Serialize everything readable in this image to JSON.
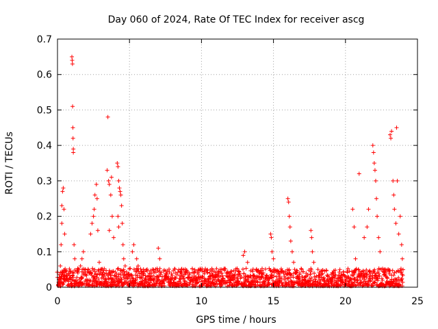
{
  "chart_data": {
    "type": "scatter",
    "title": "Day 060 of 2024, Rate Of TEC Index for receiver ascg",
    "xlabel": "GPS time / hours",
    "ylabel": "ROTI / TECUs",
    "xlim": [
      0,
      25
    ],
    "ylim": [
      0,
      0.7
    ],
    "x_ticks": [
      "0",
      "5",
      "10",
      "15",
      "20",
      "25"
    ],
    "y_ticks": [
      "0",
      "0.1",
      "0.2",
      "0.3",
      "0.4",
      "0.5",
      "0.6",
      "0.7"
    ],
    "grid": true,
    "marker": "+",
    "color": "#ff0000",
    "series": [
      {
        "name": "ROTI",
        "points": [
          [
            0.15,
            0.02
          ],
          [
            0.2,
            0.06
          ],
          [
            0.25,
            0.12
          ],
          [
            0.3,
            0.18
          ],
          [
            0.3,
            0.23
          ],
          [
            0.35,
            0.27
          ],
          [
            0.4,
            0.28
          ],
          [
            0.45,
            0.22
          ],
          [
            0.5,
            0.15
          ],
          [
            0.6,
            0.03
          ],
          [
            1.0,
            0.65
          ],
          [
            1.02,
            0.64
          ],
          [
            1.04,
            0.63
          ],
          [
            1.05,
            0.51
          ],
          [
            1.07,
            0.45
          ],
          [
            1.08,
            0.42
          ],
          [
            1.1,
            0.39
          ],
          [
            1.1,
            0.38
          ],
          [
            1.15,
            0.12
          ],
          [
            1.2,
            0.08
          ],
          [
            1.6,
            0.06
          ],
          [
            1.7,
            0.08
          ],
          [
            1.8,
            0.1
          ],
          [
            2.3,
            0.15
          ],
          [
            2.4,
            0.18
          ],
          [
            2.5,
            0.2
          ],
          [
            2.55,
            0.22
          ],
          [
            2.6,
            0.26
          ],
          [
            2.7,
            0.29
          ],
          [
            2.75,
            0.25
          ],
          [
            2.8,
            0.16
          ],
          [
            2.9,
            0.07
          ],
          [
            3.0,
            0.05
          ],
          [
            3.45,
            0.33
          ],
          [
            3.5,
            0.48
          ],
          [
            3.55,
            0.3
          ],
          [
            3.6,
            0.29
          ],
          [
            3.7,
            0.26
          ],
          [
            3.8,
            0.2
          ],
          [
            3.9,
            0.14
          ],
          [
            3.6,
            0.16
          ],
          [
            3.75,
            0.31
          ],
          [
            4.15,
            0.35
          ],
          [
            4.2,
            0.34
          ],
          [
            4.25,
            0.3
          ],
          [
            4.3,
            0.28
          ],
          [
            4.35,
            0.27
          ],
          [
            4.4,
            0.26
          ],
          [
            4.45,
            0.23
          ],
          [
            4.5,
            0.18
          ],
          [
            4.55,
            0.12
          ],
          [
            4.6,
            0.08
          ],
          [
            4.7,
            0.06
          ],
          [
            4.2,
            0.2
          ],
          [
            4.25,
            0.17
          ],
          [
            5.2,
            0.1
          ],
          [
            5.3,
            0.12
          ],
          [
            5.5,
            0.08
          ],
          [
            5.6,
            0.06
          ],
          [
            7.0,
            0.11
          ],
          [
            7.1,
            0.08
          ],
          [
            12.9,
            0.09
          ],
          [
            13.0,
            0.1
          ],
          [
            13.2,
            0.07
          ],
          [
            14.8,
            0.15
          ],
          [
            14.85,
            0.14
          ],
          [
            14.9,
            0.1
          ],
          [
            15.0,
            0.08
          ],
          [
            16.0,
            0.25
          ],
          [
            16.05,
            0.24
          ],
          [
            16.1,
            0.2
          ],
          [
            16.15,
            0.17
          ],
          [
            16.2,
            0.13
          ],
          [
            16.3,
            0.1
          ],
          [
            16.4,
            0.07
          ],
          [
            17.6,
            0.16
          ],
          [
            17.65,
            0.14
          ],
          [
            17.7,
            0.1
          ],
          [
            17.8,
            0.07
          ],
          [
            20.5,
            0.22
          ],
          [
            20.6,
            0.17
          ],
          [
            20.7,
            0.08
          ],
          [
            20.95,
            0.32
          ],
          [
            21.3,
            0.14
          ],
          [
            21.5,
            0.17
          ],
          [
            21.6,
            0.22
          ],
          [
            21.9,
            0.4
          ],
          [
            21.95,
            0.38
          ],
          [
            22.0,
            0.35
          ],
          [
            22.05,
            0.33
          ],
          [
            22.1,
            0.3
          ],
          [
            22.15,
            0.25
          ],
          [
            22.2,
            0.2
          ],
          [
            22.3,
            0.14
          ],
          [
            22.4,
            0.1
          ],
          [
            23.1,
            0.43
          ],
          [
            23.15,
            0.42
          ],
          [
            23.2,
            0.44
          ],
          [
            23.3,
            0.3
          ],
          [
            23.35,
            0.26
          ],
          [
            23.4,
            0.22
          ],
          [
            23.5,
            0.18
          ],
          [
            23.55,
            0.45
          ],
          [
            23.6,
            0.3
          ],
          [
            23.7,
            0.15
          ],
          [
            23.8,
            0.2
          ],
          [
            23.9,
            0.12
          ],
          [
            23.95,
            0.08
          ]
        ],
        "baseline": {
          "x_range": [
            0,
            24
          ],
          "typical_range": [
            0,
            0.05
          ]
        }
      }
    ]
  }
}
